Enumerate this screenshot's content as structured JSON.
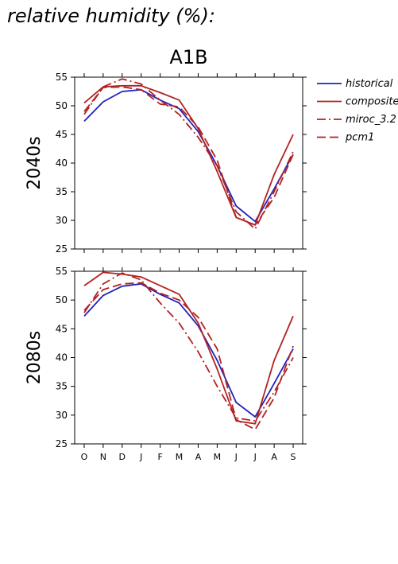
{
  "page": {
    "title": "relative humidity (%):"
  },
  "chart_data": [
    {
      "type": "line",
      "title": "A1B",
      "ylabel": "2040s",
      "xlabel": "",
      "categories": [
        "O",
        "N",
        "D",
        "J",
        "F",
        "M",
        "A",
        "M",
        "J",
        "J",
        "A",
        "S"
      ],
      "ylim": [
        25,
        55
      ],
      "yticks": [
        25,
        30,
        35,
        40,
        45,
        50,
        55
      ],
      "grid": false,
      "legend_position": "top-right-outside",
      "series": [
        {
          "name": "historical",
          "color": "#2222bb",
          "style": "solid",
          "values": [
            47.3,
            50.7,
            52.5,
            52.8,
            51.0,
            49.5,
            45.5,
            39.5,
            32.5,
            29.8,
            35.5,
            41.5
          ]
        },
        {
          "name": "composite",
          "color": "#b22222",
          "style": "solid",
          "values": [
            50.5,
            53.3,
            53.5,
            53.5,
            52.3,
            51.0,
            46.0,
            38.5,
            30.5,
            29.2,
            38.0,
            45.0
          ]
        },
        {
          "name": "miroc_3.2",
          "color": "#b22222",
          "style": "dashdot",
          "values": [
            48.5,
            53.3,
            54.7,
            53.8,
            51.0,
            48.5,
            44.5,
            39.5,
            31.5,
            28.5,
            35.0,
            42.0
          ]
        },
        {
          "name": "pcm1",
          "color": "#b22222",
          "style": "dash",
          "values": [
            49.0,
            53.2,
            53.3,
            52.8,
            50.3,
            49.8,
            46.3,
            40.5,
            30.5,
            29.2,
            34.0,
            41.5
          ]
        }
      ]
    },
    {
      "type": "line",
      "title": "",
      "ylabel": "2080s",
      "xlabel": "",
      "categories": [
        "O",
        "N",
        "D",
        "J",
        "F",
        "M",
        "A",
        "M",
        "J",
        "J",
        "A",
        "S"
      ],
      "ylim": [
        25,
        55
      ],
      "yticks": [
        25,
        30,
        35,
        40,
        45,
        50,
        55
      ],
      "grid": false,
      "series": [
        {
          "name": "historical",
          "color": "#2222bb",
          "style": "solid",
          "values": [
            47.2,
            50.8,
            52.4,
            52.8,
            51.0,
            49.5,
            45.5,
            39.5,
            32.2,
            29.7,
            35.5,
            41.5
          ]
        },
        {
          "name": "composite",
          "color": "#b22222",
          "style": "solid",
          "values": [
            52.5,
            54.8,
            54.5,
            54.0,
            52.5,
            51.0,
            46.0,
            38.0,
            29.0,
            28.5,
            39.5,
            47.2
          ]
        },
        {
          "name": "miroc_3.2",
          "color": "#b22222",
          "style": "dashdot",
          "values": [
            47.8,
            52.8,
            54.7,
            53.5,
            49.5,
            46.0,
            41.0,
            35.0,
            29.5,
            29.0,
            34.0,
            40.0
          ]
        },
        {
          "name": "pcm1",
          "color": "#b22222",
          "style": "dash",
          "values": [
            48.2,
            51.8,
            52.8,
            53.0,
            51.2,
            50.0,
            47.0,
            41.5,
            29.2,
            27.5,
            33.0,
            42.0
          ]
        }
      ]
    }
  ]
}
